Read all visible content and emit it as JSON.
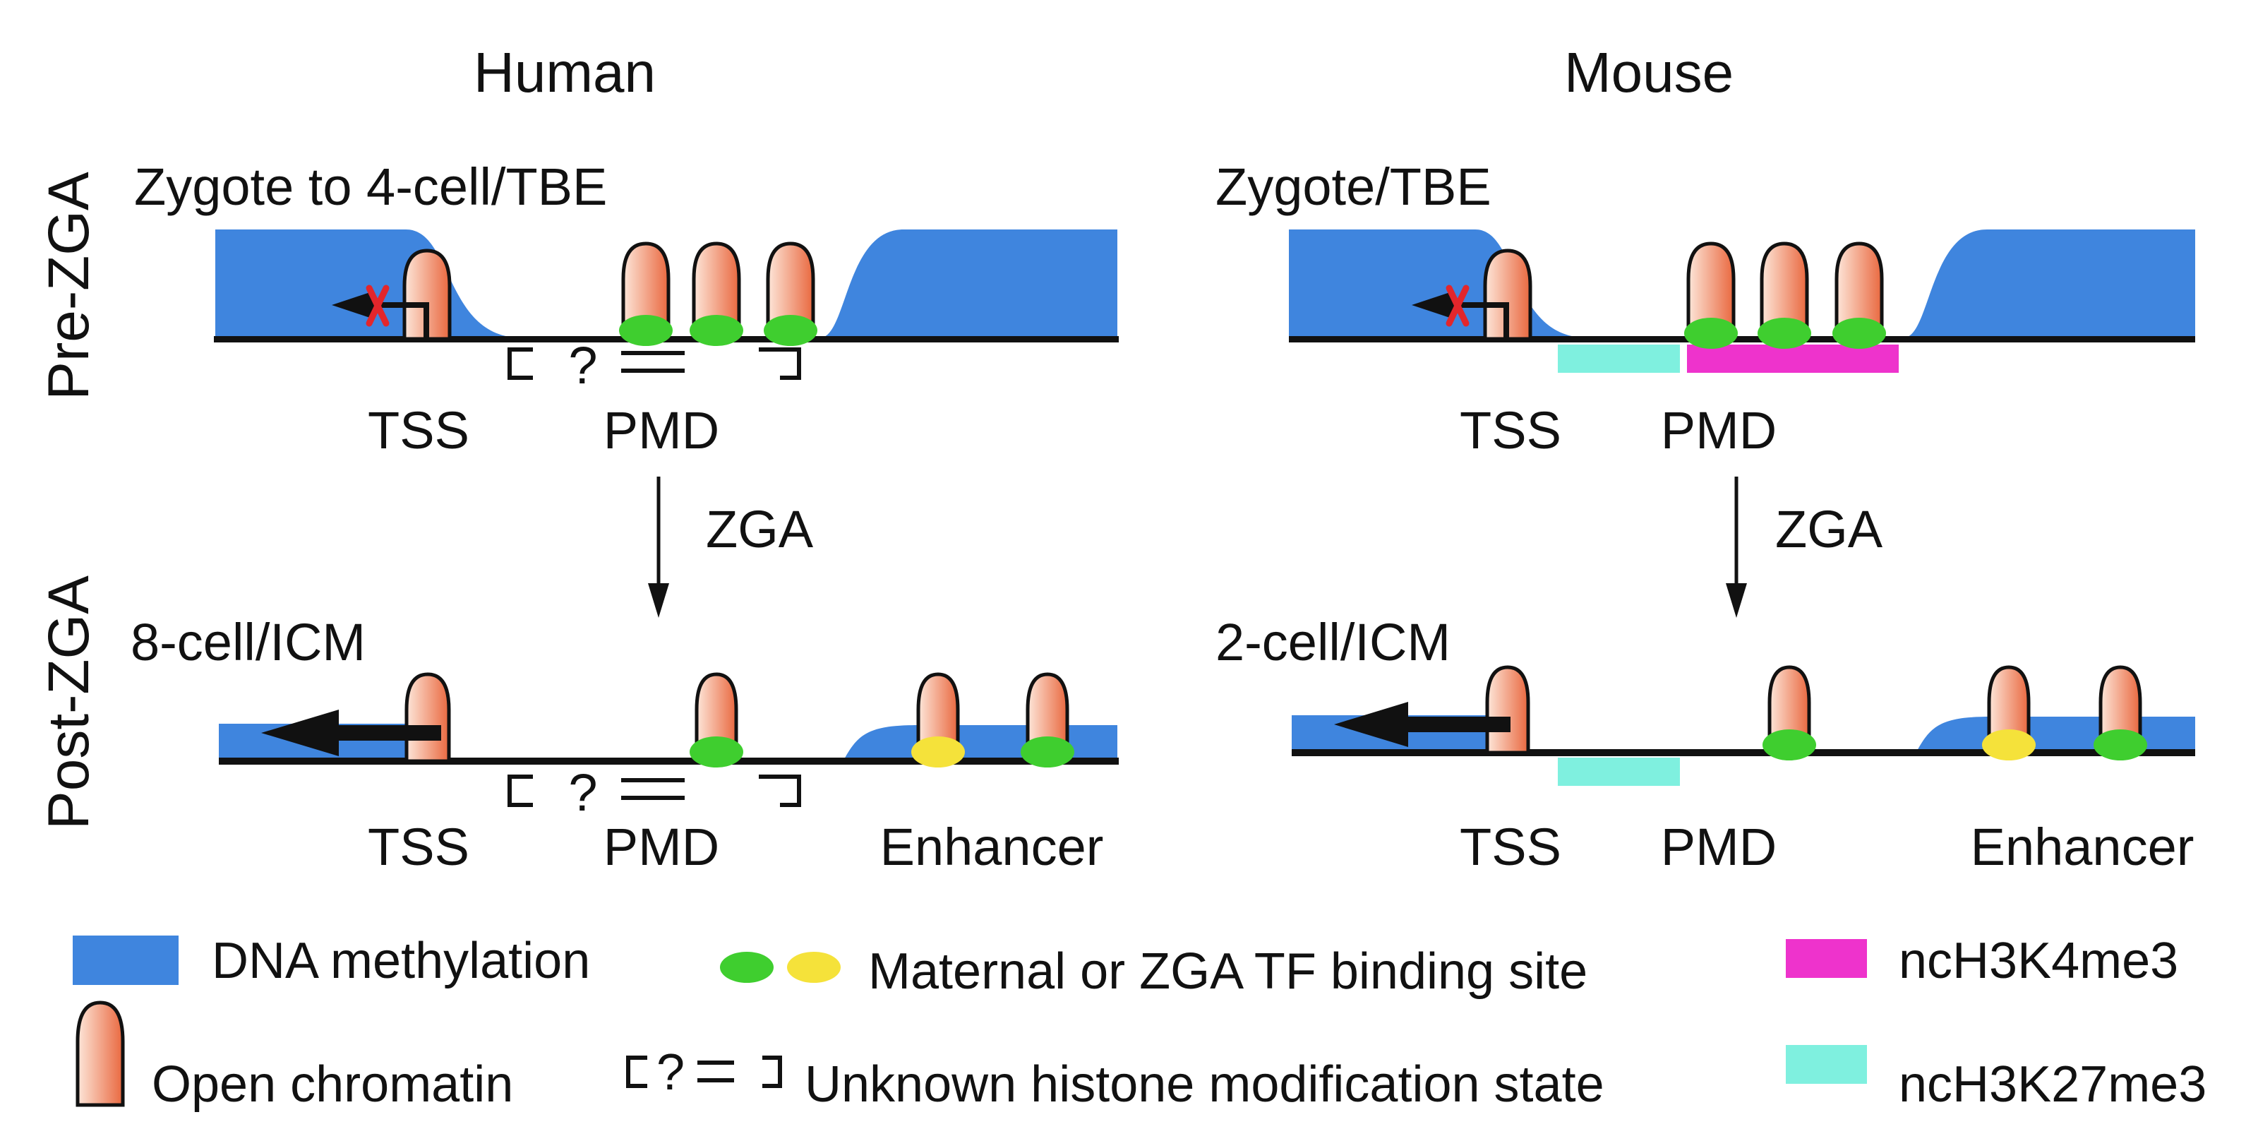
{
  "panels": {
    "human": {
      "title": "Human",
      "pre_stage": "Zygote to 4-cell/TBE",
      "post_stage": "8-cell/ICM",
      "pre_labels": {
        "tss": "TSS",
        "pmd": "PMD",
        "unknown": "?"
      },
      "post_labels": {
        "tss": "TSS",
        "pmd": "PMD",
        "enhancer": "Enhancer",
        "unknown": "?"
      },
      "transition": "ZGA"
    },
    "mouse": {
      "title": "Mouse",
      "pre_stage": "Zygote/TBE",
      "post_stage": "2-cell/ICM",
      "pre_labels": {
        "tss": "TSS",
        "pmd": "PMD"
      },
      "post_labels": {
        "tss": "TSS",
        "pmd": "PMD",
        "enhancer": "Enhancer"
      },
      "transition": "ZGA"
    }
  },
  "row_labels": {
    "pre": "Pre-ZGA",
    "post": "Post-ZGA"
  },
  "legend": {
    "dna_methylation": "DNA methylation",
    "open_chromatin": "Open chromatin",
    "tf_binding": "Maternal or ZGA TF binding site",
    "unknown_histone": "Unknown histone modification state",
    "unknown_symbol": "?",
    "h3k4me3": "ncH3K4me3",
    "h3k27me3": "ncH3K27me3"
  },
  "colors": {
    "methylation": "#3f85de",
    "peak_light": "#fde6d9",
    "peak_dark": "#e9683f",
    "tf_green": "#3fce2f",
    "tf_yellow": "#f5e23a",
    "h3k4me3": "#ee33cc",
    "h3k27me3": "#7ff0df",
    "repressed_mark": "#e3262b"
  },
  "icons": {
    "tss_arrow": "arrow-left-icon",
    "repressed": "red-x-icon",
    "transition": "arrow-down-icon"
  }
}
